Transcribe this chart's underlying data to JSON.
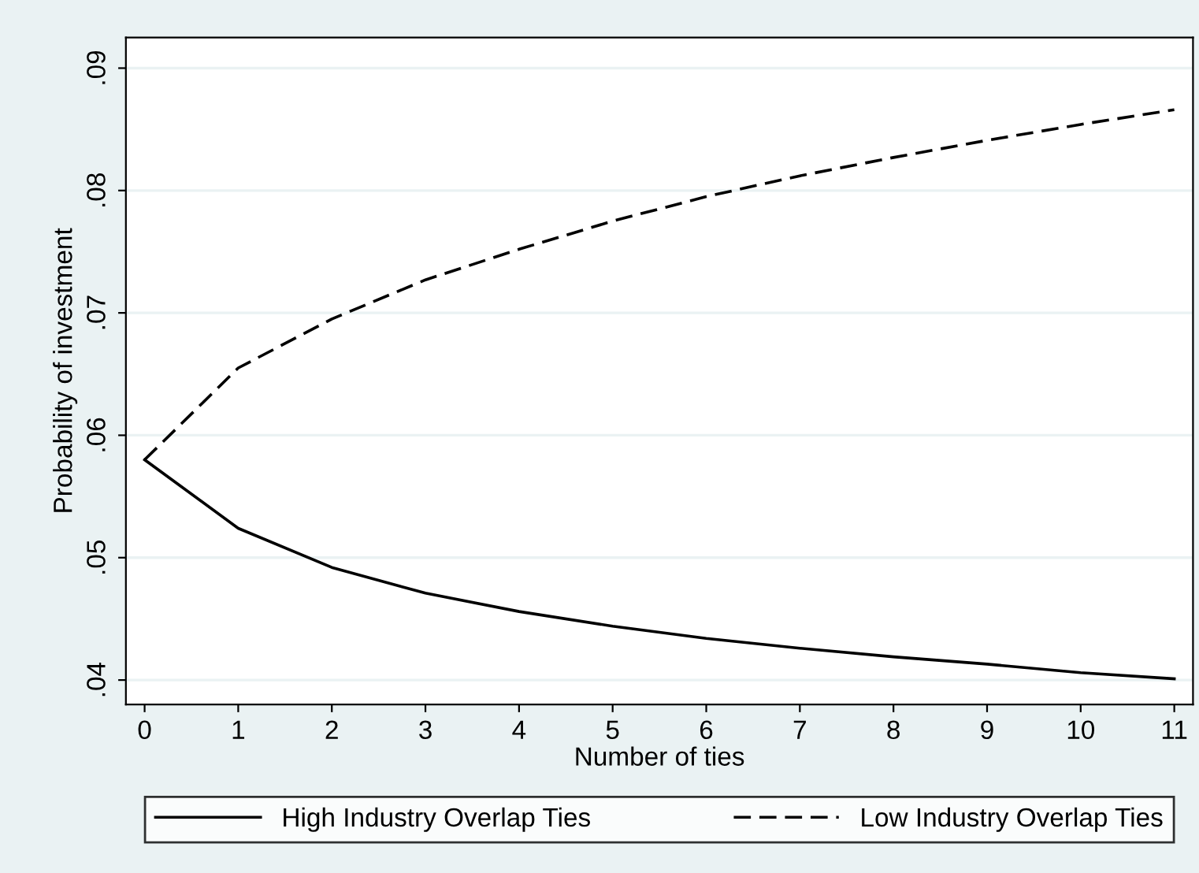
{
  "chart_data": {
    "type": "line",
    "xlabel": "Number of ties",
    "ylabel": "Probability of investment",
    "x": [
      0,
      1,
      2,
      3,
      4,
      5,
      6,
      7,
      8,
      9,
      10,
      11
    ],
    "series": [
      {
        "name": "High Industry Overlap Ties",
        "color": "#000000",
        "line_style": "solid",
        "values": [
          0.058,
          0.0524,
          0.0492,
          0.0471,
          0.0456,
          0.0444,
          0.0434,
          0.0426,
          0.0419,
          0.0413,
          0.0406,
          0.0401
        ]
      },
      {
        "name": "Low Industry Overlap Ties",
        "color": "#000000",
        "line_style": "dashed",
        "values": [
          0.058,
          0.0655,
          0.0695,
          0.0727,
          0.0752,
          0.0775,
          0.0795,
          0.0812,
          0.0827,
          0.0841,
          0.0854,
          0.0866
        ]
      }
    ],
    "xlim": [
      -0.2,
      11.2
    ],
    "ylim": [
      0.038,
      0.0925
    ],
    "xticks": [
      0,
      1,
      2,
      3,
      4,
      5,
      6,
      7,
      8,
      9,
      10,
      11
    ],
    "yticks": [
      {
        "value": 0.04,
        "label": ".04"
      },
      {
        "value": 0.05,
        "label": ".05"
      },
      {
        "value": 0.06,
        "label": ".06"
      },
      {
        "value": 0.07,
        "label": ".07"
      },
      {
        "value": 0.08,
        "label": ".08"
      },
      {
        "value": 0.09,
        "label": ".09"
      }
    ],
    "grid": "y",
    "legend": "bottom",
    "marker": "none"
  }
}
